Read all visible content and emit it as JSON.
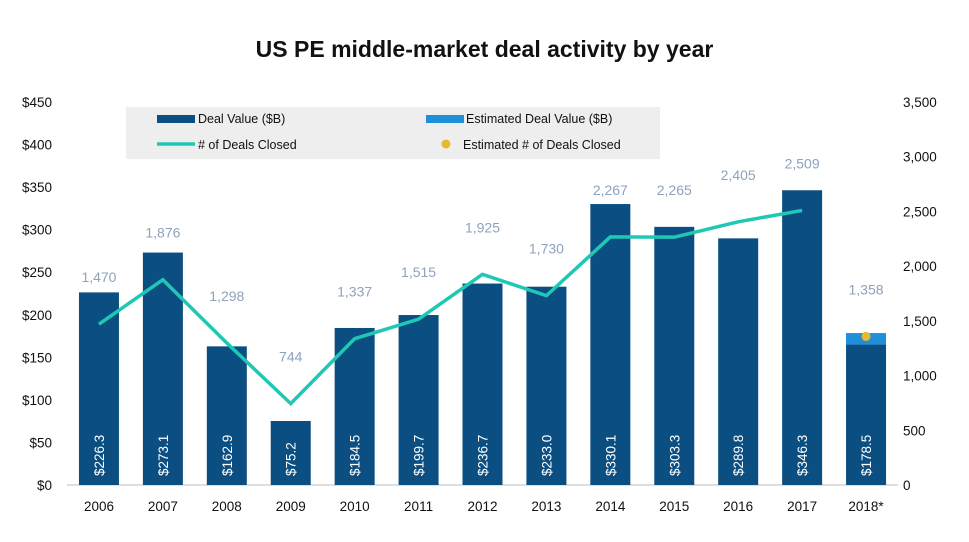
{
  "chart_data": {
    "type": "bar",
    "title": "US PE middle-market deal activity by year",
    "categories": [
      "2006",
      "2007",
      "2008",
      "2009",
      "2010",
      "2011",
      "2012",
      "2013",
      "2014",
      "2015",
      "2016",
      "2017",
      "2018*"
    ],
    "series": [
      {
        "name": "Deal Value ($B)",
        "type": "bar",
        "axis": "left",
        "values": [
          226.3,
          273.1,
          162.9,
          75.2,
          184.5,
          199.7,
          236.7,
          233.0,
          330.1,
          303.3,
          289.8,
          346.3,
          165.0
        ]
      },
      {
        "name": "Estimated Deal Value ($B)",
        "type": "bar-stacked",
        "axis": "left",
        "values": [
          null,
          null,
          null,
          null,
          null,
          null,
          null,
          null,
          null,
          null,
          null,
          null,
          13.5
        ]
      },
      {
        "name": "# of Deals Closed",
        "type": "line",
        "axis": "right",
        "values": [
          1470,
          1876,
          1298,
          744,
          1337,
          1515,
          1925,
          1730,
          2267,
          2265,
          2405,
          2509,
          null
        ]
      },
      {
        "name": "Estimated # of Deals Closed",
        "type": "point",
        "axis": "right",
        "values": [
          null,
          null,
          null,
          null,
          null,
          null,
          null,
          null,
          null,
          null,
          null,
          null,
          1358
        ]
      }
    ],
    "value_labels": [
      "$226.3",
      "$273.1",
      "$162.9",
      "$75.2",
      "$184.5",
      "$199.7",
      "$236.7",
      "$233.0",
      "$330.1",
      "$303.3",
      "$289.8",
      "$346.3",
      "$178.5"
    ],
    "count_labels": [
      "1,470",
      "1,876",
      "1,298",
      "744",
      "1,337",
      "1,515",
      "1,925",
      "1,730",
      "2,267",
      "2,265",
      "2,405",
      "2,509",
      "1,358"
    ],
    "y_left": {
      "min": 0,
      "max": 450,
      "step": 50,
      "tick_labels": [
        "$0",
        "$50",
        "$100",
        "$150",
        "$200",
        "$250",
        "$300",
        "$350",
        "$400",
        "$450"
      ]
    },
    "y_right": {
      "min": 0,
      "max": 3500,
      "step": 500,
      "tick_labels": [
        "0",
        "500",
        "1,000",
        "1,500",
        "2,000",
        "2,500",
        "3,000",
        "3,500"
      ]
    },
    "grid": false,
    "legend_position": "top",
    "colors": {
      "bar": "#0b4f82",
      "estimated_bar": "#1f8fd9",
      "line": "#1ec8b5",
      "estimated_point": "#e6b92e",
      "count_label": "#8ea2bd",
      "legend_bg": "#eeeeee"
    }
  }
}
